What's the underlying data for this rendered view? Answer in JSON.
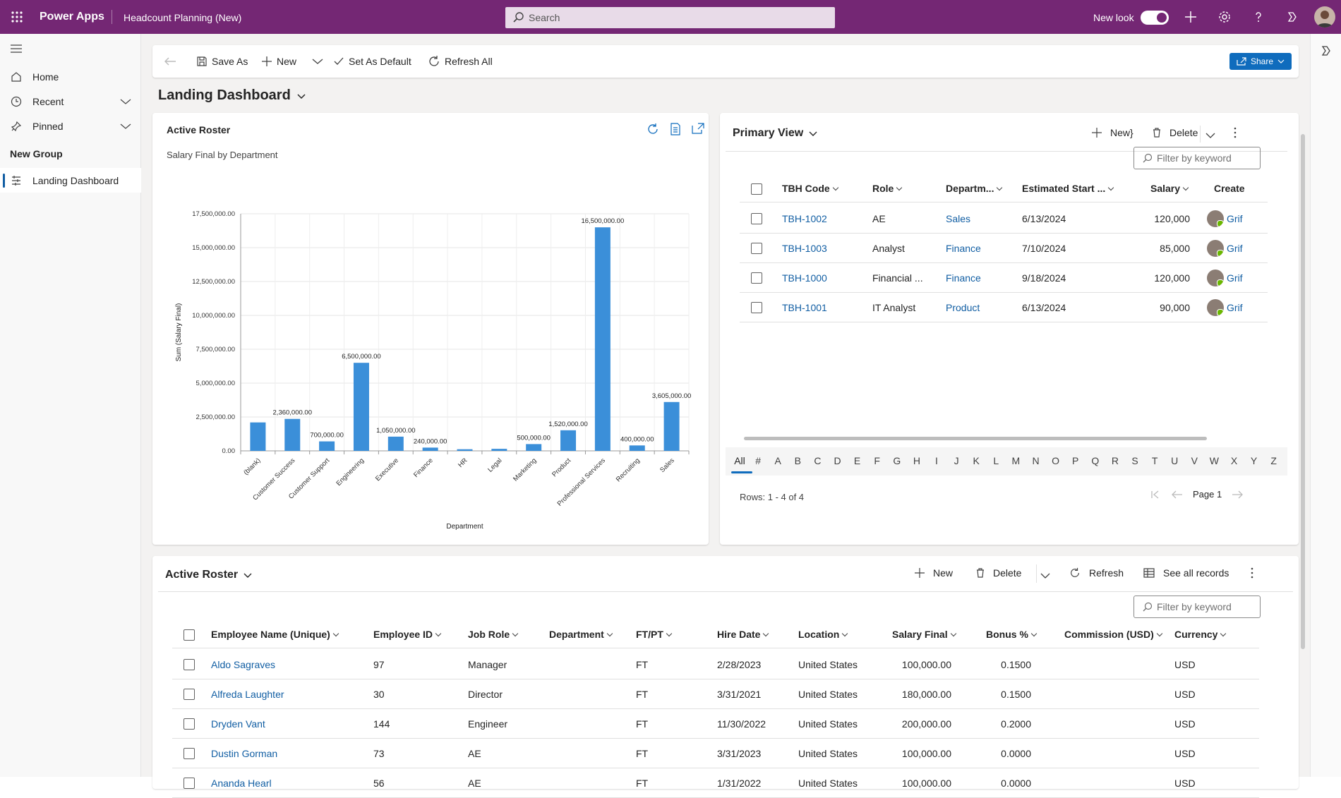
{
  "topbar": {
    "app_name": "Power Apps",
    "page_name": "Headcount Planning (New)",
    "search_placeholder": "Search",
    "new_look_label": "New look"
  },
  "sidebar": {
    "items": [
      {
        "label": "Home",
        "icon": "home-icon"
      },
      {
        "label": "Recent",
        "icon": "clock-icon"
      },
      {
        "label": "Pinned",
        "icon": "pin-icon"
      }
    ],
    "group_label": "New Group",
    "active_item": "Landing Dashboard"
  },
  "toolbar": {
    "save_as": "Save As",
    "new": "New",
    "set_default": "Set As Default",
    "refresh_all": "Refresh All",
    "share": "Share"
  },
  "dashboard_title": "Landing Dashboard",
  "chart_card": {
    "title": "Active Roster",
    "subtitle": "Salary Final by Department"
  },
  "chart_data": {
    "type": "bar",
    "title": "Salary Final by Department",
    "xlabel": "Department",
    "ylabel": "Sum (Salary Final)",
    "ylim": [
      0,
      17500000
    ],
    "yticks": [
      "0.00",
      "2,500,000.00",
      "5,000,000.00",
      "7,500,000.00",
      "10,000,000.00",
      "12,500,000.00",
      "15,000,000.00",
      "17,500,000.00"
    ],
    "categories": [
      "(blank)",
      "Customer Success",
      "Customer Support",
      "Engineering",
      "Executive",
      "Finance",
      "HR",
      "Legal",
      "Marketing",
      "Product",
      "Professional Services",
      "Recruiting",
      "Sales"
    ],
    "values": [
      2100000,
      2360000,
      700000,
      6500000,
      1050000,
      240000,
      120000,
      150000,
      500000,
      1520000,
      16500000,
      400000,
      3605000
    ],
    "data_labels": [
      "",
      "2,360,000.00",
      "700,000.00",
      "6,500,000.00",
      "1,050,000.00",
      "240,000.00",
      "",
      "",
      "500,000.00",
      "1,520,000.00",
      "16,500,000.00",
      "400,000.00",
      "3,605,000.00"
    ],
    "color": "#3b8fd9",
    "grid": true,
    "legend": "none"
  },
  "primary_view": {
    "title": "Primary View",
    "new": "New",
    "delete": "Delete",
    "filter_placeholder": "Filter by keyword",
    "columns": [
      "TBH Code",
      "Role",
      "Departm...",
      "Estimated Start ...",
      "Salary",
      "Create"
    ],
    "rows": [
      {
        "code": "TBH-1002",
        "role": "AE",
        "dept": "Sales",
        "start": "6/13/2024",
        "salary": "120,000",
        "creator": "Grif"
      },
      {
        "code": "TBH-1003",
        "role": "Analyst",
        "dept": "Finance",
        "start": "7/10/2024",
        "salary": "85,000",
        "creator": "Grif"
      },
      {
        "code": "TBH-1000",
        "role": "Financial ...",
        "dept": "Finance",
        "start": "9/18/2024",
        "salary": "120,000",
        "creator": "Grif"
      },
      {
        "code": "TBH-1001",
        "role": "IT Analyst",
        "dept": "Product",
        "start": "6/13/2024",
        "salary": "90,000",
        "creator": "Grif"
      }
    ],
    "jump_letters": [
      "All",
      "#",
      "A",
      "B",
      "C",
      "D",
      "E",
      "F",
      "G",
      "H",
      "I",
      "J",
      "K",
      "L",
      "M",
      "N",
      "O",
      "P",
      "Q",
      "R",
      "S",
      "T",
      "U",
      "V",
      "W",
      "X",
      "Y",
      "Z"
    ],
    "rows_label": "Rows: 1 - 4 of 4",
    "page_label": "Page 1"
  },
  "roster": {
    "title": "Active Roster",
    "new": "New",
    "delete": "Delete",
    "refresh": "Refresh",
    "see_all": "See all records",
    "filter_placeholder": "Filter by keyword",
    "columns": [
      "Employee Name (Unique)",
      "Employee ID",
      "Job Role",
      "Department",
      "FT/PT",
      "Hire Date",
      "Location",
      "Salary Final",
      "Bonus %",
      "Commission (USD)",
      "Currency"
    ],
    "rows": [
      {
        "name": "Aldo Sagraves",
        "id": "97",
        "role": "Manager",
        "dept": "",
        "ftpt": "FT",
        "hire": "2/28/2023",
        "loc": "United States",
        "salary": "100,000.00",
        "bonus": "0.1500",
        "comm": "",
        "cur": "USD"
      },
      {
        "name": "Alfreda Laughter",
        "id": "30",
        "role": "Director",
        "dept": "",
        "ftpt": "FT",
        "hire": "3/31/2021",
        "loc": "United States",
        "salary": "180,000.00",
        "bonus": "0.1500",
        "comm": "",
        "cur": "USD"
      },
      {
        "name": "Dryden Vant",
        "id": "144",
        "role": "Engineer",
        "dept": "",
        "ftpt": "FT",
        "hire": "11/30/2022",
        "loc": "United States",
        "salary": "200,000.00",
        "bonus": "0.2000",
        "comm": "",
        "cur": "USD"
      },
      {
        "name": "Dustin Gorman",
        "id": "73",
        "role": "AE",
        "dept": "",
        "ftpt": "FT",
        "hire": "3/31/2023",
        "loc": "United States",
        "salary": "100,000.00",
        "bonus": "0.0000",
        "comm": "",
        "cur": "USD"
      },
      {
        "name": "Ananda Hearl",
        "id": "56",
        "role": "AE",
        "dept": "",
        "ftpt": "FT",
        "hire": "1/31/2022",
        "loc": "United States",
        "salary": "100,000.00",
        "bonus": "0.0000",
        "comm": "",
        "cur": "USD"
      }
    ]
  }
}
